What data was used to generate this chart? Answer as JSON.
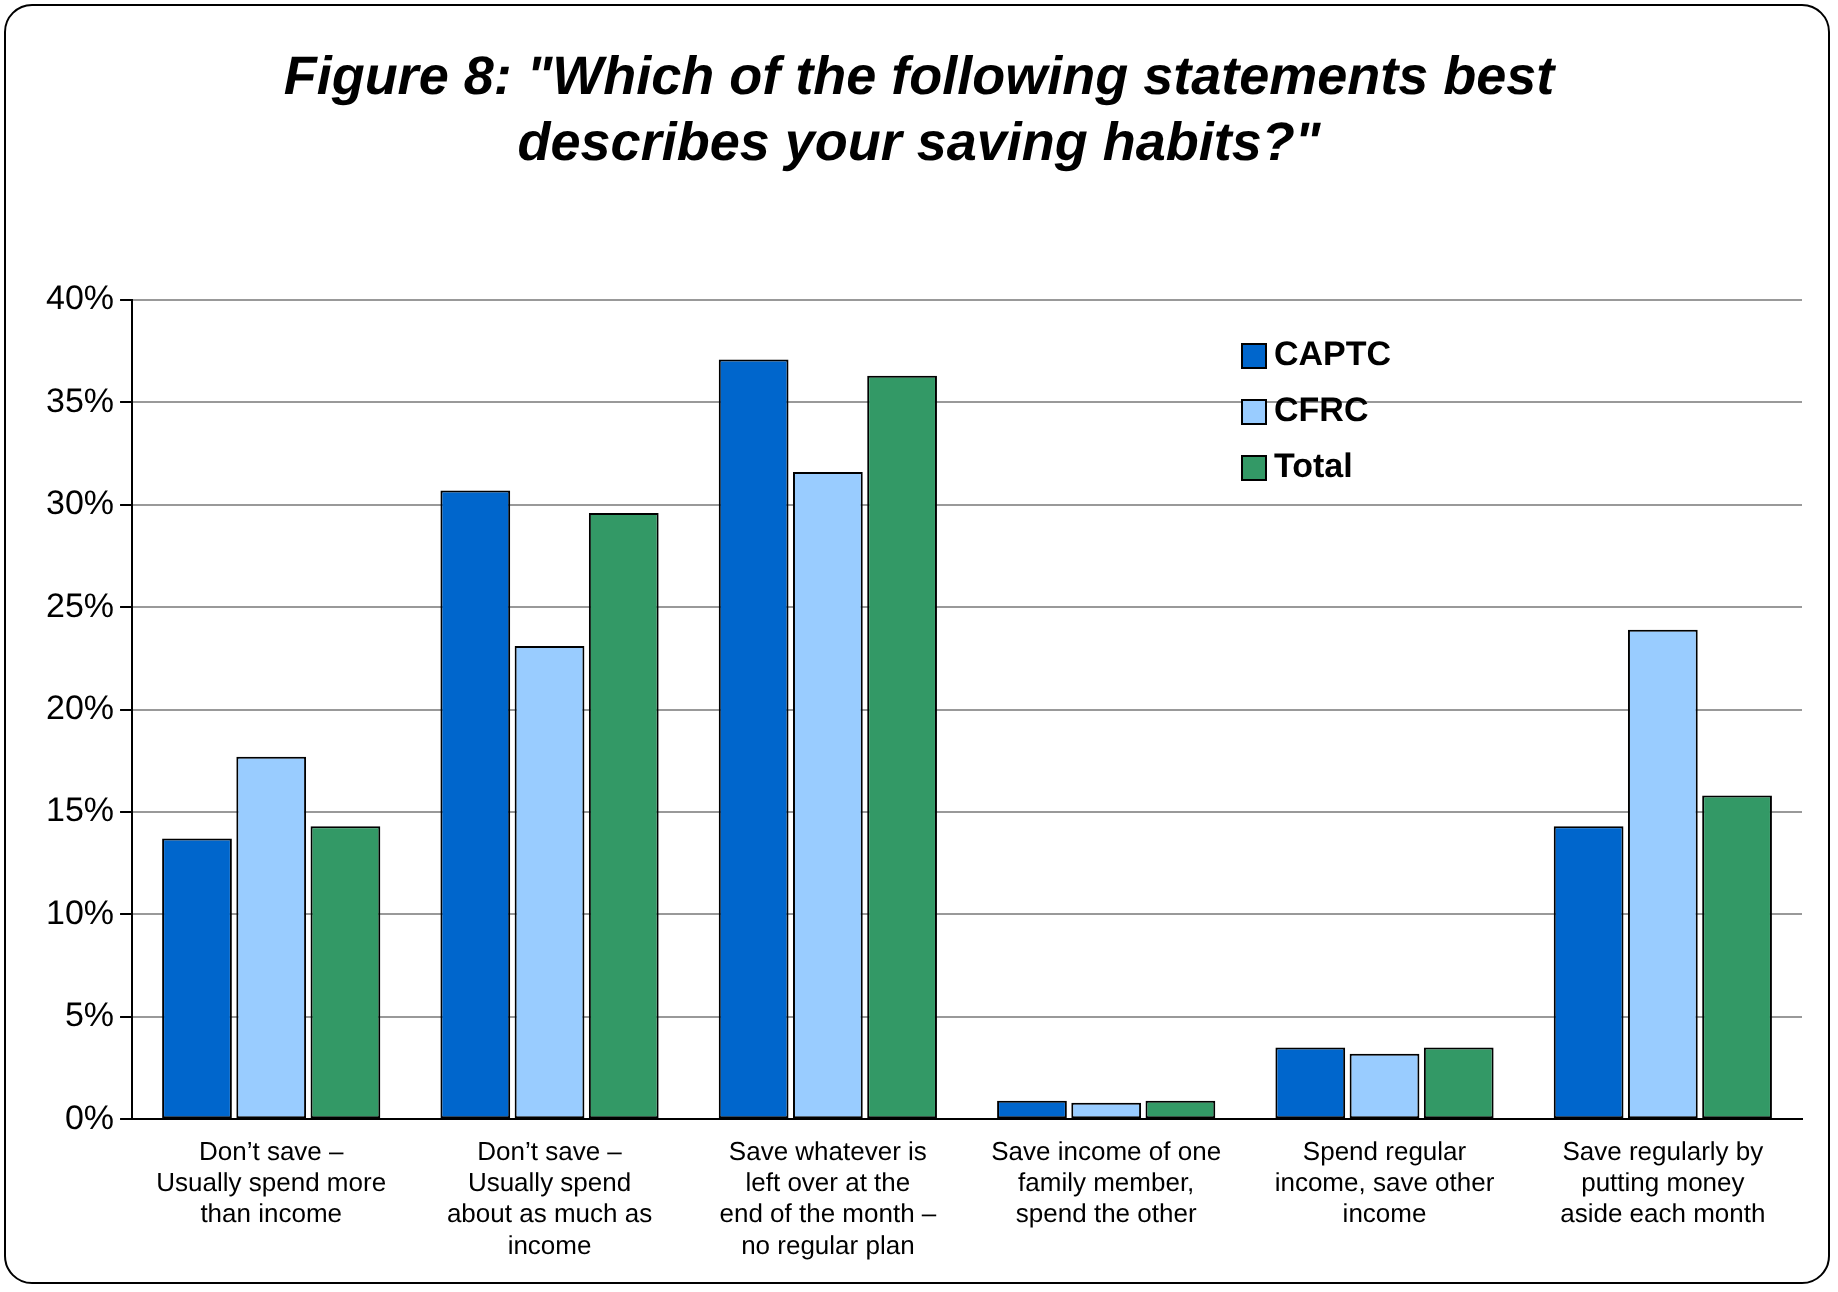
{
  "chart_data": {
    "type": "bar",
    "title": "Figure 8: \"Which of the following statements best describes your saving habits?\"",
    "categories": [
      "Don’t save – Usually spend more than income",
      "Don’t save – Usually spend about as much as income",
      "Save whatever is left over at the end of the month – no regular plan",
      "Save income of one family member, spend the other",
      "Spend regular income, save other income",
      "Save regularly by putting money aside each month"
    ],
    "series": [
      {
        "name": "CAPTC",
        "color": "#0066cc",
        "values": [
          13.7,
          30.7,
          37.1,
          0.9,
          3.5,
          14.3
        ]
      },
      {
        "name": "CFRC",
        "color": "#99ccff",
        "values": [
          17.7,
          23.1,
          31.6,
          0.8,
          3.2,
          23.9
        ]
      },
      {
        "name": "Total",
        "color": "#339966",
        "values": [
          14.3,
          29.6,
          36.3,
          0.9,
          3.5,
          15.8
        ]
      }
    ],
    "ylim": [
      0,
      40
    ],
    "yticks": [
      {
        "value": 0,
        "label": "0%"
      },
      {
        "value": 5,
        "label": "5%"
      },
      {
        "value": 10,
        "label": "10%"
      },
      {
        "value": 15,
        "label": "15%"
      },
      {
        "value": 20,
        "label": "20%"
      },
      {
        "value": 25,
        "label": "25%"
      },
      {
        "value": 30,
        "label": "30%"
      },
      {
        "value": 35,
        "label": "35%"
      },
      {
        "value": 40,
        "label": "40%"
      }
    ],
    "grid": "y",
    "legend": "top right"
  }
}
